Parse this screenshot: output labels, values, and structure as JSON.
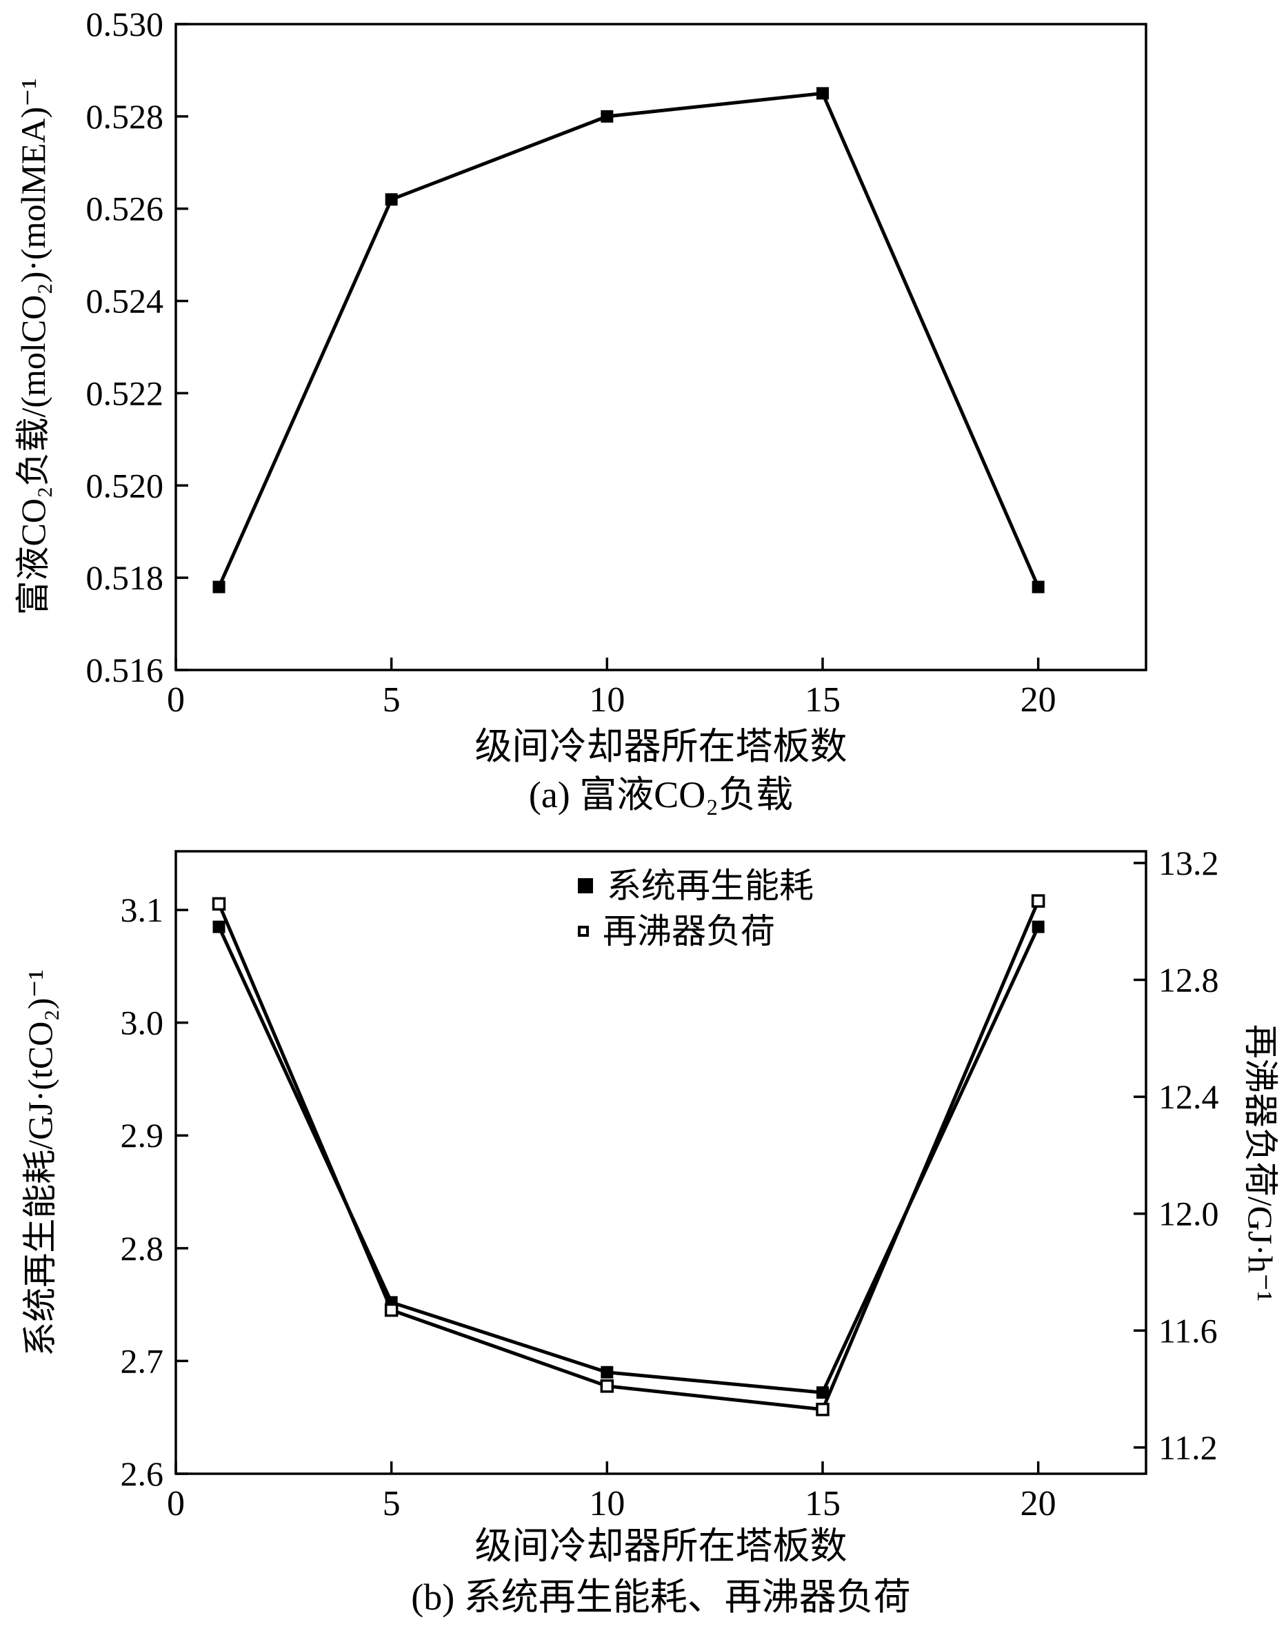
{
  "page": {
    "background": "#ffffff",
    "line_color": "#000000"
  },
  "chart_data": [
    {
      "id": "a",
      "type": "line",
      "title": "(a) 富液CO₂负载",
      "xlabel": "级间冷却器所在塔板数",
      "ylabel": "富液CO₂负载/(molCO₂)·(molMEA)⁻¹",
      "x": [
        1,
        5,
        10,
        15,
        20
      ],
      "series": [
        {
          "name": "富液CO₂负载",
          "marker": "filled-square",
          "axis": "left",
          "values": [
            0.5178,
            0.5262,
            0.528,
            0.5285,
            0.5178
          ]
        }
      ],
      "xlim": [
        0,
        22.5
      ],
      "ylim": [
        0.516,
        0.53
      ],
      "xticks": [
        "0",
        "5",
        "10",
        "15",
        "20"
      ],
      "yticks": [
        "0.516",
        "0.518",
        "0.520",
        "0.522",
        "0.524",
        "0.526",
        "0.528",
        "0.530"
      ],
      "grid": false,
      "legend": null
    },
    {
      "id": "b",
      "type": "line",
      "title": "(b) 系统再生能耗、再沸器负荷",
      "xlabel": "级间冷却器所在塔板数",
      "ylabel_left": "系统再生能耗/GJ·(tCO₂)⁻¹",
      "ylabel_right": "再沸器负荷/GJ·h⁻¹",
      "x": [
        1,
        5,
        10,
        15,
        20
      ],
      "series": [
        {
          "name": "系统再生能耗",
          "marker": "filled-square",
          "axis": "left",
          "values": [
            3.085,
            2.752,
            2.69,
            2.672,
            3.085
          ]
        },
        {
          "name": "再沸器负荷",
          "marker": "open-square",
          "axis": "right",
          "values": [
            13.06,
            11.67,
            11.41,
            11.33,
            13.07
          ]
        }
      ],
      "xlim": [
        0,
        22.5
      ],
      "ylim_left": [
        2.6,
        3.152
      ],
      "ylim_right": [
        11.11,
        13.24
      ],
      "xticks": [
        "0",
        "5",
        "10",
        "15",
        "20"
      ],
      "yticks_left": [
        "2.6",
        "2.7",
        "2.8",
        "2.9",
        "3.0",
        "3.1"
      ],
      "yticks_right": [
        "11.2",
        "11.6",
        "12.0",
        "12.4",
        "12.8",
        "13.2"
      ],
      "grid": false,
      "legend": {
        "position": "top-center"
      }
    }
  ]
}
